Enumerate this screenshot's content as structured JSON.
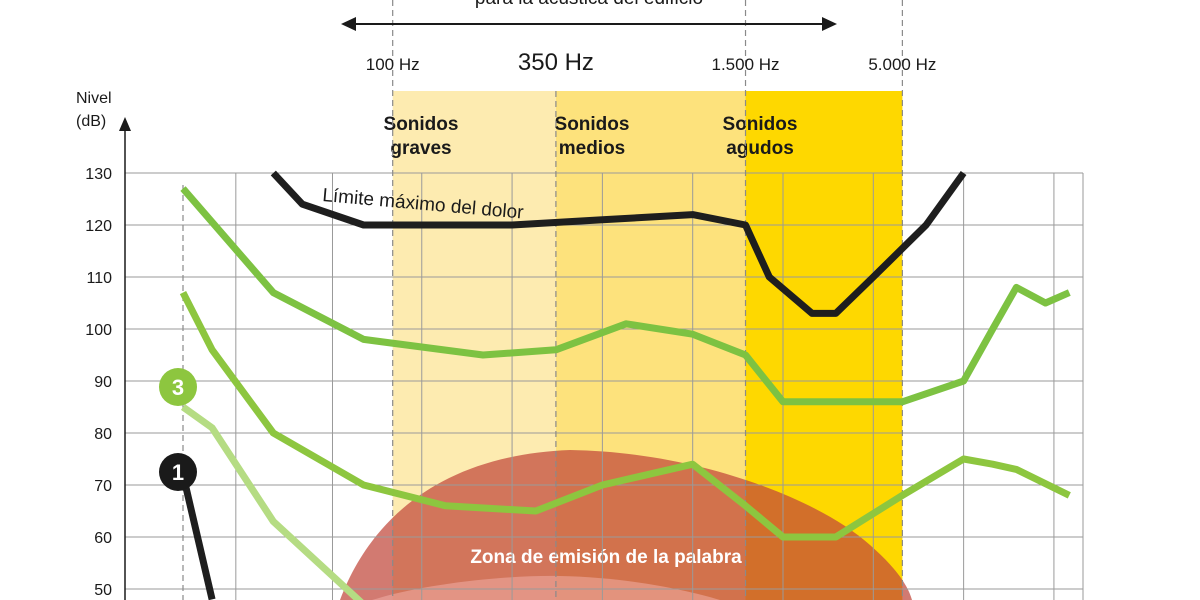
{
  "chart_data": {
    "type": "line",
    "header_text": "para la acústica del edificio",
    "ylabel": "Nivel",
    "yunit": "(dB)",
    "ylim": [
      50,
      130
    ],
    "yticks": [
      130,
      120,
      110,
      100,
      90,
      80,
      70,
      60,
      50
    ],
    "grid": true,
    "freq_markers": [
      {
        "label": "100 Hz",
        "x": 100,
        "emphasis": false
      },
      {
        "label": "350 Hz",
        "x": 350,
        "emphasis": true
      },
      {
        "label": "1.500 Hz",
        "x": 1500,
        "emphasis": false
      },
      {
        "label": "5.000 Hz",
        "x": 5000,
        "emphasis": false
      }
    ],
    "bands": [
      {
        "label_line1": "Sonidos",
        "label_line2": "graves",
        "x_from": 100,
        "x_to": 350,
        "color": "#fdebb0"
      },
      {
        "label_line1": "Sonidos",
        "label_line2": "medios",
        "x_from": 350,
        "x_to": 1500,
        "color": "#fde27c"
      },
      {
        "label_line1": "Sonidos",
        "label_line2": "agudos",
        "x_from": 1500,
        "x_to": 5000,
        "color": "#fed800"
      }
    ],
    "zone_label": "Zona de emisión de la palabra",
    "pain_label": "Límite máximo del dolor",
    "badges": [
      {
        "text": "3",
        "color": "#8dc63f"
      },
      {
        "text": "1",
        "color": "#1a1a1a"
      }
    ],
    "series": [
      {
        "color": "#1e1e1e",
        "x": [
          40,
          50,
          80,
          125,
          250,
          500,
          1000,
          1500,
          1800,
          2500,
          3000,
          4000,
          6000,
          8000
        ],
        "y": [
          130,
          124,
          120,
          120,
          120,
          121,
          122,
          120,
          110,
          103,
          103,
          110,
          120,
          130
        ]
      },
      {
        "color": "#7dc242",
        "x": [
          20,
          40,
          80,
          200,
          350,
          600,
          1000,
          1500,
          2000,
          3000,
          5000,
          8000,
          10000,
          12000,
          15000,
          18000
        ],
        "y": [
          127,
          107,
          98,
          95,
          96,
          101,
          99,
          95,
          86,
          86,
          86,
          90,
          100,
          108,
          105,
          107
        ]
      },
      {
        "color": "#8dc63f",
        "x": [
          20,
          25,
          40,
          80,
          150,
          300,
          500,
          1000,
          1500,
          2000,
          3000,
          5000,
          8000,
          10000,
          12000,
          18000
        ],
        "y": [
          107,
          96,
          80,
          70,
          66,
          65,
          70,
          74,
          66,
          60,
          60,
          68,
          75,
          74,
          73,
          68
        ]
      },
      {
        "color": "#b5dc83",
        "x": [
          20,
          25,
          40,
          80
        ],
        "y": [
          85,
          81,
          63,
          47
        ]
      },
      {
        "color": "#1e1e1e",
        "x": [
          20,
          25
        ],
        "y": [
          72,
          48
        ]
      }
    ]
  }
}
